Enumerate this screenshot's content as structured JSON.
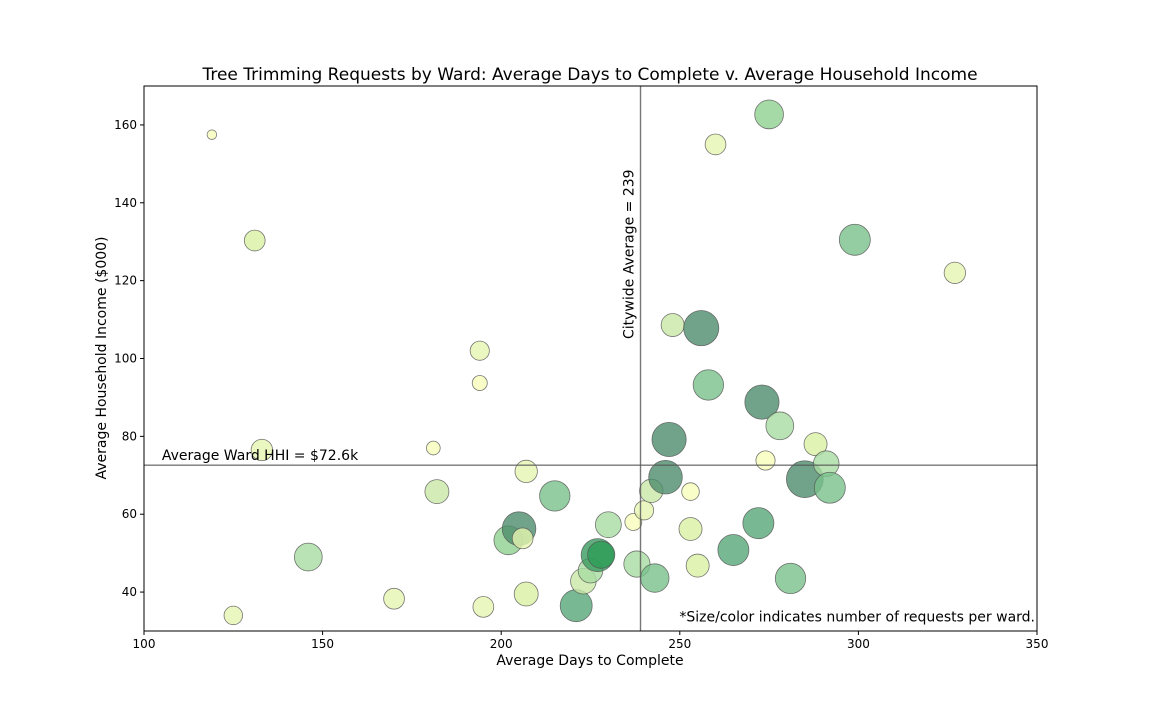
{
  "chart_data": {
    "type": "scatter",
    "title": "Tree Trimming Requests by Ward: Average Days to Complete v. Average Household Income",
    "xlabel": "Average Days to Complete",
    "ylabel": "Average Household Income ($000)",
    "xlim": [
      100,
      350
    ],
    "ylim": [
      30,
      170
    ],
    "xticks": [
      100,
      150,
      200,
      250,
      300,
      350
    ],
    "yticks": [
      40,
      60,
      80,
      100,
      120,
      140,
      160
    ],
    "grid": false,
    "vline": {
      "x": 239,
      "label": "Citywide Average = 239"
    },
    "hline": {
      "y": 72.6,
      "label": "Average Ward HHI = $72.6k"
    },
    "footnote": "*Size/color indicates number of requests per ward.",
    "points": [
      {
        "x": 119,
        "y": 157.5,
        "size": 0.05,
        "color": "#f7fcb9"
      },
      {
        "x": 131,
        "y": 130.3,
        "size": 0.4,
        "color": "#d9f0a3"
      },
      {
        "x": 133,
        "y": 76.5,
        "size": 0.42,
        "color": "#e6f5b0"
      },
      {
        "x": 125,
        "y": 34.0,
        "size": 0.33,
        "color": "#e6f5b0"
      },
      {
        "x": 146,
        "y": 49.0,
        "size": 0.62,
        "color": "#a7dca1"
      },
      {
        "x": 170,
        "y": 38.3,
        "size": 0.4,
        "color": "#e6f5b0"
      },
      {
        "x": 181,
        "y": 77.0,
        "size": 0.18,
        "color": "#f7fcb9"
      },
      {
        "x": 182,
        "y": 65.8,
        "size": 0.5,
        "color": "#c9e9a6"
      },
      {
        "x": 194,
        "y": 102.0,
        "size": 0.35,
        "color": "#e6f5b0"
      },
      {
        "x": 194,
        "y": 93.7,
        "size": 0.22,
        "color": "#f7fcb9"
      },
      {
        "x": 195,
        "y": 36.2,
        "size": 0.4,
        "color": "#e6f5b0"
      },
      {
        "x": 207,
        "y": 71.0,
        "size": 0.45,
        "color": "#e6f5b0"
      },
      {
        "x": 207,
        "y": 39.5,
        "size": 0.5,
        "color": "#d9f0a3"
      },
      {
        "x": 202,
        "y": 53.3,
        "size": 0.65,
        "color": "#8fd08f"
      },
      {
        "x": 205,
        "y": 56.3,
        "size": 0.8,
        "color": "#4c8c6c"
      },
      {
        "x": 206,
        "y": 53.8,
        "size": 0.4,
        "color": "#e6f5b0"
      },
      {
        "x": 215,
        "y": 64.7,
        "size": 0.7,
        "color": "#78c08a"
      },
      {
        "x": 221,
        "y": 36.5,
        "size": 0.75,
        "color": "#56a878"
      },
      {
        "x": 223,
        "y": 42.8,
        "size": 0.55,
        "color": "#c9e9a6"
      },
      {
        "x": 225,
        "y": 45.5,
        "size": 0.52,
        "color": "#a7dca1"
      },
      {
        "x": 227,
        "y": 49.5,
        "size": 0.78,
        "color": "#3a9a5e"
      },
      {
        "x": 228,
        "y": 49.6,
        "size": 0.6,
        "color": "#2e9c58"
      },
      {
        "x": 230,
        "y": 57.3,
        "size": 0.56,
        "color": "#a7dca1"
      },
      {
        "x": 237,
        "y": 58.0,
        "size": 0.28,
        "color": "#f7fcb9"
      },
      {
        "x": 240,
        "y": 61.0,
        "size": 0.35,
        "color": "#e6f5b0"
      },
      {
        "x": 238,
        "y": 47.2,
        "size": 0.57,
        "color": "#a7dca1"
      },
      {
        "x": 242,
        "y": 66.0,
        "size": 0.48,
        "color": "#c9e9a6"
      },
      {
        "x": 243,
        "y": 43.6,
        "size": 0.64,
        "color": "#78c08a"
      },
      {
        "x": 247,
        "y": 79.2,
        "size": 0.82,
        "color": "#4c8c6c"
      },
      {
        "x": 246,
        "y": 69.5,
        "size": 0.8,
        "color": "#4c8c6c"
      },
      {
        "x": 248,
        "y": 108.6,
        "size": 0.47,
        "color": "#c9e9a6"
      },
      {
        "x": 253,
        "y": 65.8,
        "size": 0.3,
        "color": "#f7fcb9"
      },
      {
        "x": 253,
        "y": 56.2,
        "size": 0.47,
        "color": "#d9f0a3"
      },
      {
        "x": 255,
        "y": 46.8,
        "size": 0.47,
        "color": "#d9f0a3"
      },
      {
        "x": 256,
        "y": 107.8,
        "size": 0.85,
        "color": "#4c8c6c"
      },
      {
        "x": 258,
        "y": 93.2,
        "size": 0.7,
        "color": "#78c08a"
      },
      {
        "x": 260,
        "y": 155.0,
        "size": 0.4,
        "color": "#e6f5b0"
      },
      {
        "x": 265,
        "y": 50.8,
        "size": 0.72,
        "color": "#56a878"
      },
      {
        "x": 272,
        "y": 57.7,
        "size": 0.72,
        "color": "#56a878"
      },
      {
        "x": 273,
        "y": 88.8,
        "size": 0.82,
        "color": "#4c8c6c"
      },
      {
        "x": 274,
        "y": 73.8,
        "size": 0.35,
        "color": "#f7fcb9"
      },
      {
        "x": 275,
        "y": 162.7,
        "size": 0.65,
        "color": "#8fd08f"
      },
      {
        "x": 278,
        "y": 82.7,
        "size": 0.62,
        "color": "#a7dca1"
      },
      {
        "x": 281,
        "y": 43.5,
        "size": 0.7,
        "color": "#78c08a"
      },
      {
        "x": 285,
        "y": 69.0,
        "size": 0.9,
        "color": "#4c8c6c"
      },
      {
        "x": 288,
        "y": 78.0,
        "size": 0.47,
        "color": "#d9f0a3"
      },
      {
        "x": 291,
        "y": 73.0,
        "size": 0.55,
        "color": "#a7dca1"
      },
      {
        "x": 292,
        "y": 66.8,
        "size": 0.72,
        "color": "#78c08a"
      },
      {
        "x": 299,
        "y": 130.5,
        "size": 0.72,
        "color": "#78c08a"
      },
      {
        "x": 327,
        "y": 122.0,
        "size": 0.42,
        "color": "#e6f5b0"
      }
    ]
  }
}
